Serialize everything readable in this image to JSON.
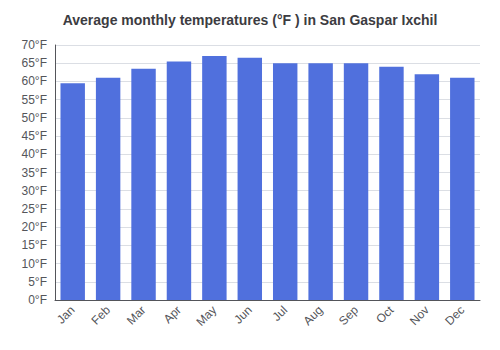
{
  "chart_data": {
    "type": "bar",
    "title": "Average monthly temperatures (°F ) in San Gaspar Ixchil",
    "categories": [
      "Jan",
      "Feb",
      "Mar",
      "Apr",
      "May",
      "Jun",
      "Jul",
      "Aug",
      "Sep",
      "Oct",
      "Nov",
      "Dec"
    ],
    "values": [
      59.5,
      61.0,
      63.5,
      65.5,
      67.0,
      66.5,
      65.0,
      65.0,
      65.0,
      64.0,
      62.0,
      61.0
    ],
    "ylim": [
      0,
      70
    ],
    "yticks": [
      {
        "value": 0,
        "label": "0°F"
      },
      {
        "value": 5,
        "label": "5°F"
      },
      {
        "value": 10,
        "label": "10°F"
      },
      {
        "value": 15,
        "label": "15°F"
      },
      {
        "value": 20,
        "label": "20°F"
      },
      {
        "value": 25,
        "label": "25°F"
      },
      {
        "value": 30,
        "label": "30°F"
      },
      {
        "value": 35,
        "label": "35°F"
      },
      {
        "value": 40,
        "label": "40°F"
      },
      {
        "value": 45,
        "label": "45°F"
      },
      {
        "value": 50,
        "label": "50°F"
      },
      {
        "value": 55,
        "label": "55°F"
      },
      {
        "value": 60,
        "label": "60°F"
      },
      {
        "value": 65,
        "label": "65°F"
      },
      {
        "value": 70,
        "label": "70°F"
      }
    ],
    "grid": true
  }
}
